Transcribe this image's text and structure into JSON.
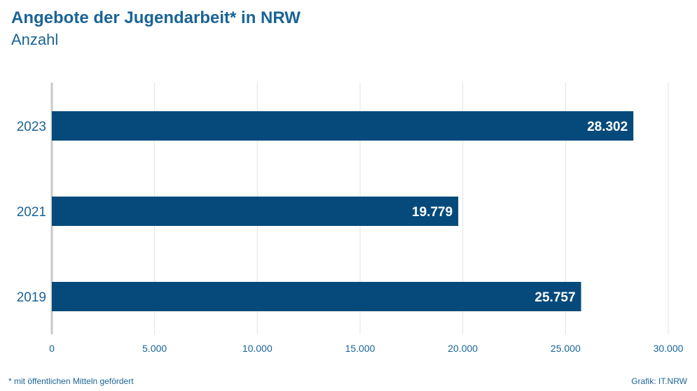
{
  "header": {
    "title": "Angebote der Jugendarbeit* in NRW",
    "subtitle": "Anzahl"
  },
  "footer": {
    "footnote": "*  mit öffentlichen Mitteln gefördert",
    "source": "Grafik: IT.NRW"
  },
  "colors": {
    "bar": "#064a7b",
    "text": "#1a6496",
    "grid": "#e3e3e3",
    "axis": "#c8c8c8",
    "label": "#ffffff"
  },
  "chart_data": {
    "type": "bar",
    "orientation": "horizontal",
    "title": "Angebote der Jugendarbeit* in NRW",
    "subtitle": "Anzahl",
    "categories": [
      "2023",
      "2021",
      "2019"
    ],
    "values": [
      28302,
      19779,
      25757
    ],
    "value_labels": [
      "28.302",
      "19.779",
      "25.757"
    ],
    "xlim": [
      0,
      30000
    ],
    "ticks": [
      0,
      5000,
      10000,
      15000,
      20000,
      25000,
      30000
    ],
    "tick_labels": [
      "0",
      "5.000",
      "10.000",
      "15.000",
      "20.000",
      "25.000",
      "30.000"
    ],
    "grid": true,
    "legend": "none"
  }
}
